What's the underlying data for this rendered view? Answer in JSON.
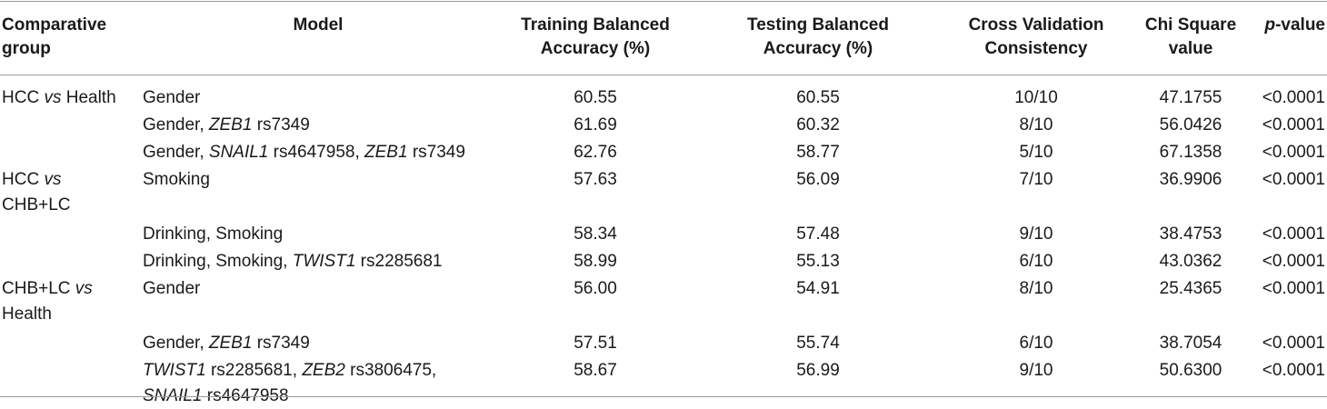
{
  "header": {
    "group_line1": "Comparative",
    "group_line2": "group",
    "model": "Model",
    "train_line1": "Training Balanced",
    "train_line2": "Accuracy (%)",
    "test_line1": "Testing Balanced",
    "test_line2": "Accuracy (%)",
    "cv_line1": "Cross Validation",
    "cv_line2": "Consistency",
    "chi_line1": "Chi Square",
    "chi_line2": "value",
    "p_italic": "p",
    "p_rest": "-value"
  },
  "groups": {
    "g1_a": "HCC ",
    "g1_vs": "vs",
    "g1_b": " Health",
    "g2_a": "HCC ",
    "g2_vs": "vs",
    "g2_line2": "CHB+LC",
    "g3_a": "CHB+LC ",
    "g3_vs": "vs",
    "g3_line2": "Health"
  },
  "rows": [
    {
      "model": [
        {
          "t": "Gender",
          "i": false
        }
      ],
      "train": "60.55",
      "test": "60.55",
      "cv": "10/10",
      "chi": "47.1755",
      "p": "<0.0001"
    },
    {
      "model": [
        {
          "t": "Gender, ",
          "i": false
        },
        {
          "t": "ZEB1",
          "i": true
        },
        {
          "t": " rs7349",
          "i": false
        }
      ],
      "train": "61.69",
      "test": "60.32",
      "cv": "8/10",
      "chi": "56.0426",
      "p": "<0.0001"
    },
    {
      "model": [
        {
          "t": "Gender, ",
          "i": false
        },
        {
          "t": "SNAIL1",
          "i": true
        },
        {
          "t": " rs4647958, ",
          "i": false
        },
        {
          "t": "ZEB1",
          "i": true
        },
        {
          "t": " rs7349",
          "i": false
        }
      ],
      "train": "62.76",
      "test": "58.77",
      "cv": "5/10",
      "chi": "67.1358",
      "p": "<0.0001"
    },
    {
      "model": [
        {
          "t": "Smoking",
          "i": false
        }
      ],
      "train": "57.63",
      "test": "56.09",
      "cv": "7/10",
      "chi": "36.9906",
      "p": "<0.0001"
    },
    {
      "model": [
        {
          "t": "Drinking, Smoking",
          "i": false
        }
      ],
      "train": "58.34",
      "test": "57.48",
      "cv": "9/10",
      "chi": "38.4753",
      "p": "<0.0001"
    },
    {
      "model": [
        {
          "t": "Drinking, Smoking, ",
          "i": false
        },
        {
          "t": "TWIST1",
          "i": true
        },
        {
          "t": " rs2285681",
          "i": false
        }
      ],
      "train": "58.99",
      "test": "55.13",
      "cv": "6/10",
      "chi": "43.0362",
      "p": "<0.0001"
    },
    {
      "model": [
        {
          "t": "Gender",
          "i": false
        }
      ],
      "train": "56.00",
      "test": "54.91",
      "cv": "8/10",
      "chi": "25.4365",
      "p": "<0.0001"
    },
    {
      "model": [
        {
          "t": "Gender, ",
          "i": false
        },
        {
          "t": "ZEB1",
          "i": true
        },
        {
          "t": " rs7349",
          "i": false
        }
      ],
      "train": "57.51",
      "test": "55.74",
      "cv": "6/10",
      "chi": "38.7054",
      "p": "<0.0001"
    },
    {
      "model": [
        {
          "t": "TWIST1",
          "i": true
        },
        {
          "t": " rs2285681, ",
          "i": false
        },
        {
          "t": "ZEB2",
          "i": true
        },
        {
          "t": " rs3806475,",
          "i": false
        }
      ],
      "model_line2": [
        {
          "t": "SNAIL1",
          "i": true
        },
        {
          "t": " rs4647958",
          "i": false
        }
      ],
      "train": "58.67",
      "test": "56.99",
      "cv": "9/10",
      "chi": "50.6300",
      "p": "<0.0001"
    }
  ]
}
